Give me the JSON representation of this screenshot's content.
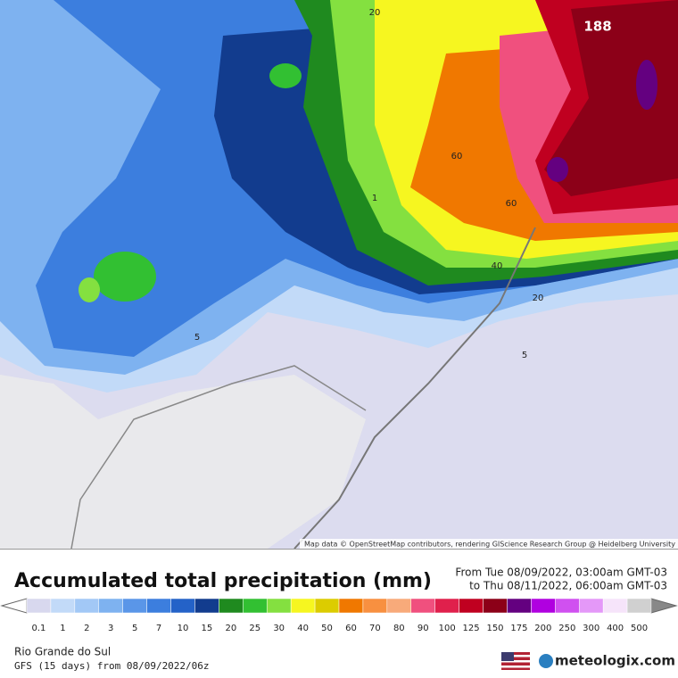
{
  "map": {
    "contour_labels": [
      "20",
      "188",
      "60",
      "60",
      "40",
      "20",
      "5",
      "5",
      "1"
    ],
    "attribution": "Map data © OpenStreetMap contributors, rendering GIScience Research Group @ Heidelberg University"
  },
  "panel": {
    "title": "Accumulated total precipitation (mm)",
    "from": "From Tue 08/09/2022, 03:00am GMT-03",
    "to": "to Thu 08/11/2022, 06:00am GMT-03",
    "region": "Rio Grande do Sul",
    "model": "GFS (15 days) from 08/09/2022/06z",
    "brand": "meteologix.com"
  },
  "legend": {
    "levels": [
      0.1,
      1,
      2,
      3,
      5,
      7,
      10,
      15,
      20,
      25,
      30,
      40,
      50,
      60,
      70,
      80,
      90,
      100,
      125,
      150,
      175,
      200,
      250,
      300,
      400,
      500
    ],
    "colors": [
      "#d8d8ee",
      "#c2daf8",
      "#a2c8f6",
      "#7eb2f0",
      "#5a96e8",
      "#3c7ede",
      "#2462c8",
      "#123c8e",
      "#1f8a1f",
      "#32c032",
      "#84e040",
      "#f6f620",
      "#dccc00",
      "#f07800",
      "#f89040",
      "#f8aa7a",
      "#f0507e",
      "#e0204c",
      "#c00020",
      "#8c0018",
      "#640080",
      "#b000e0",
      "#d050f0",
      "#e498f8",
      "#f6e4fa",
      "#d0d0d0"
    ]
  }
}
